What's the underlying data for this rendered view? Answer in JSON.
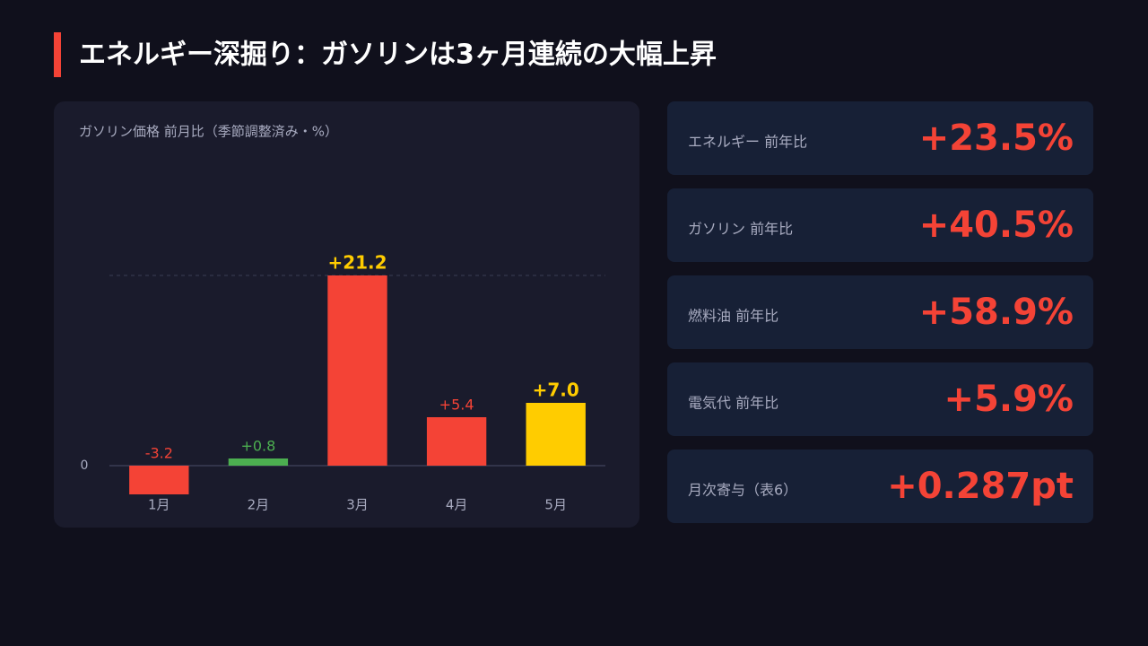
{
  "header": {
    "title": "エネルギー深掘り：ガソリンは3ヶ月連続の大幅上昇"
  },
  "chart_data": {
    "type": "bar",
    "title": "ガソリン価格 前月比（季節調整済み・%）",
    "categories": [
      "1月",
      "2月",
      "3月",
      "4月",
      "5月"
    ],
    "values": [
      -3.2,
      0.8,
      21.2,
      5.4,
      7.0
    ],
    "value_labels": [
      "-3.2",
      "+0.8",
      "+21.2",
      "+5.4",
      "+7.0"
    ],
    "colors": [
      "#f44336",
      "#4caf50",
      "#f44336",
      "#f44336",
      "#ffcc00"
    ],
    "label_colors": [
      "#f44336",
      "#4caf50",
      "#ffcc00",
      "#f44336",
      "#ffcc00"
    ],
    "emphasized": [
      false,
      false,
      true,
      false,
      true
    ],
    "ylim": [
      -4,
      34
    ],
    "yticks": [
      0
    ]
  },
  "cards": [
    {
      "label": "エネルギー 前年比",
      "value": "+23.5%"
    },
    {
      "label": "ガソリン 前年比",
      "value": "+40.5%"
    },
    {
      "label": "燃料油 前年比",
      "value": "+58.9%"
    },
    {
      "label": "電気代 前年比",
      "value": "+5.9%"
    },
    {
      "label": "月次寄与（表6）",
      "value": "+0.287pt"
    }
  ]
}
